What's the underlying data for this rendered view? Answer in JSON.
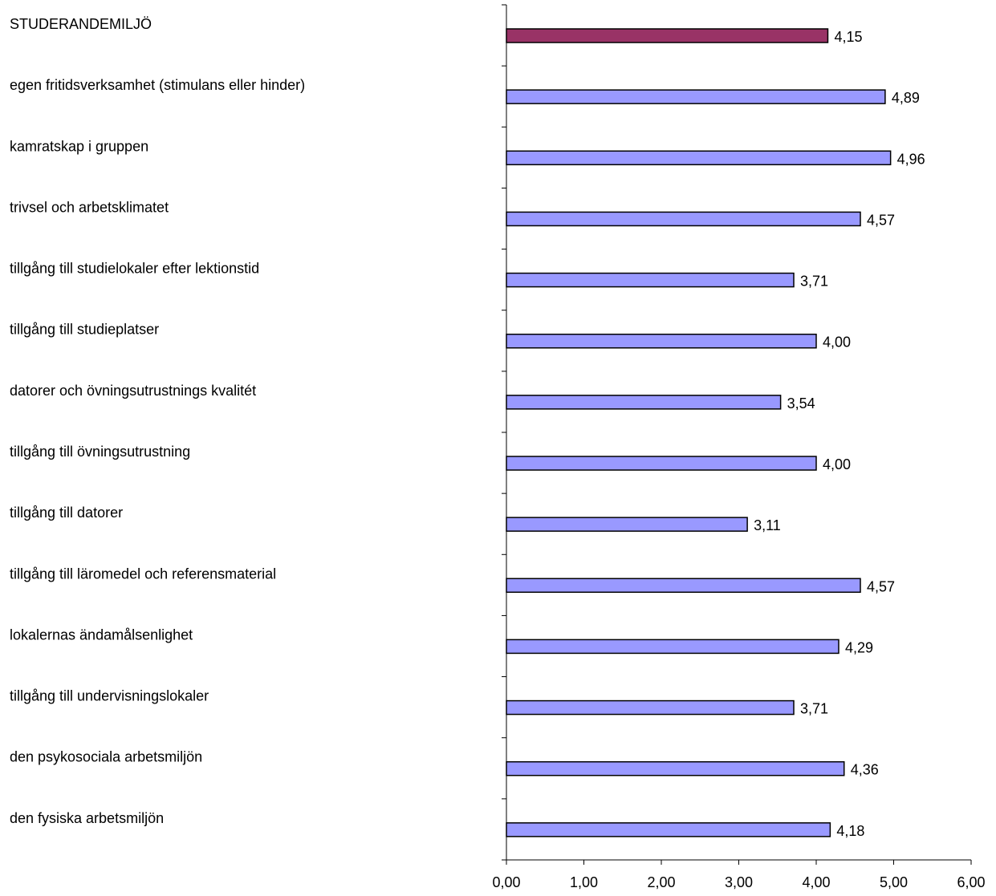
{
  "chart_data": {
    "type": "bar",
    "orientation": "horizontal",
    "categories": [
      "STUDERANDEMILJÖ",
      "egen fritidsverksamhet (stimulans eller hinder)",
      "kamratskap i gruppen",
      "trivsel och arbetsklimatet",
      "tillgång till studielokaler efter lektionstid",
      "tillgång till studieplatser",
      "datorer och övningsutrustnings kvalitét",
      "tillgång till övningsutrustning",
      "tillgång till datorer",
      "tillgång till läromedel och referensmaterial",
      "lokalernas ändamålsenlighet",
      "tillgång till undervisningslokaler",
      "den psykosociala arbetsmiljön",
      "den fysiska arbetsmiljön"
    ],
    "values": [
      4.15,
      4.89,
      4.96,
      4.57,
      3.71,
      4.0,
      3.54,
      4.0,
      3.11,
      4.57,
      4.29,
      3.71,
      4.36,
      4.18
    ],
    "value_labels": [
      "4,15",
      "4,89",
      "4,96",
      "4,57",
      "3,71",
      "4,00",
      "3,54",
      "4,00",
      "3,11",
      "4,57",
      "4,29",
      "3,71",
      "4,36",
      "4,18"
    ],
    "xlim": [
      0,
      6
    ],
    "x_ticks": [
      0,
      1,
      2,
      3,
      4,
      5,
      6
    ],
    "x_tick_labels": [
      "0,00",
      "1,00",
      "2,00",
      "3,00",
      "4,00",
      "5,00",
      "6,00"
    ],
    "highlight_index": 0,
    "colors": {
      "highlight_bar": "#993366",
      "bar": "#9999ff",
      "bar_stroke": "#000000"
    },
    "grid": false,
    "legend": "none",
    "title": "",
    "xlabel": "",
    "ylabel": ""
  }
}
